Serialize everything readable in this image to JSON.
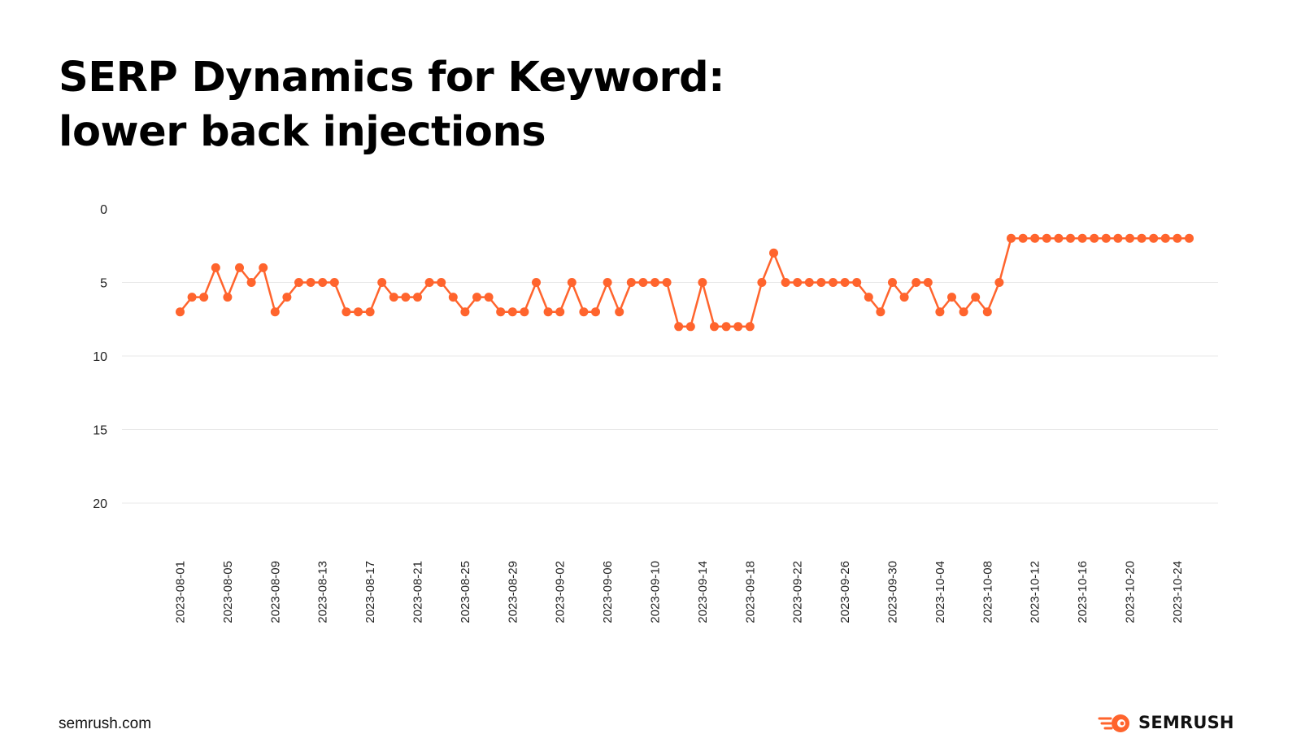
{
  "title": {
    "line1": "SERP Dynamics for Keyword:",
    "line2": "lower back injections"
  },
  "footer": {
    "site": "semrush.com",
    "brand": "SEMRUSH",
    "brand_icon": "semrush-fireball-icon"
  },
  "colors": {
    "line": "#FF642D",
    "grid": "#E8E8E8",
    "text": "#222222"
  },
  "chart_data": {
    "type": "line",
    "title": "SERP Dynamics for Keyword: lower back injections",
    "xlabel": "",
    "ylabel": "",
    "y_inverted": true,
    "ylim": [
      0,
      22
    ],
    "yticks": [
      0,
      5,
      10,
      15,
      20
    ],
    "grid": true,
    "legend": "none",
    "x_start": "2023-08-01",
    "x_tick_labels": [
      "2023-08-01",
      "2023-08-05",
      "2023-08-09",
      "2023-08-13",
      "2023-08-17",
      "2023-08-21",
      "2023-08-25",
      "2023-08-29",
      "2023-09-02",
      "2023-09-06",
      "2023-09-10",
      "2023-09-14",
      "2023-09-18",
      "2023-09-22",
      "2023-09-26",
      "2023-09-30",
      "2023-10-04",
      "2023-10-08",
      "2023-10-12",
      "2023-10-16",
      "2023-10-20",
      "2023-10-24"
    ],
    "series": [
      {
        "values": [
          7,
          6,
          6,
          4,
          6,
          4,
          5,
          4,
          7,
          6,
          5,
          5,
          5,
          5,
          7,
          7,
          7,
          5,
          6,
          6,
          6,
          5,
          5,
          6,
          7,
          6,
          6,
          7,
          7,
          7,
          5,
          7,
          7,
          5,
          7,
          7,
          5,
          7,
          5,
          5,
          5,
          5,
          8,
          8,
          5,
          8,
          8,
          8,
          8,
          5,
          3,
          5,
          5,
          5,
          5,
          5,
          5,
          5,
          6,
          7,
          5,
          6,
          5,
          5,
          7,
          6,
          7,
          6,
          7,
          5,
          2,
          2,
          2,
          2,
          2,
          2,
          2,
          2,
          2,
          2,
          2,
          2,
          2,
          2,
          2,
          2
        ]
      }
    ]
  }
}
